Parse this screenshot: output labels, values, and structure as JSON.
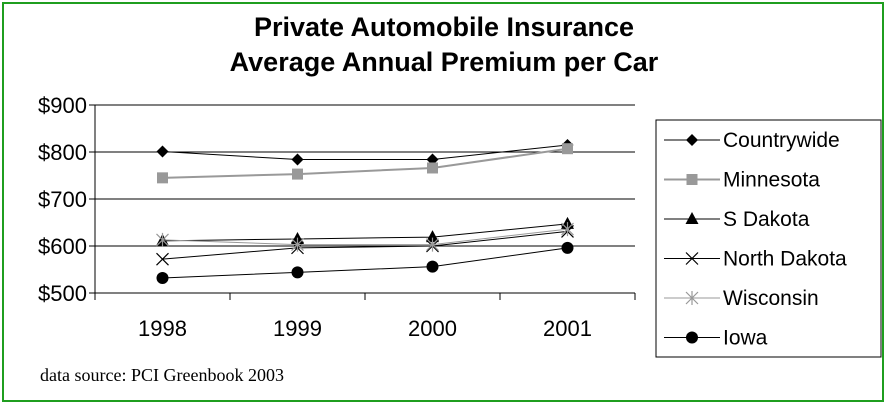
{
  "chart_data": {
    "type": "line",
    "title_line1": "Private Automobile Insurance",
    "title_line2": "Average Annual Premium per Car",
    "categories": [
      "1998",
      "1999",
      "2000",
      "2001"
    ],
    "ylim": [
      500,
      900
    ],
    "yticks": [
      500,
      600,
      700,
      800,
      900
    ],
    "ytick_labels": [
      "$500",
      "$600",
      "$700",
      "$800",
      "$900"
    ],
    "grid": true,
    "legend_position": "right",
    "series": [
      {
        "name": "Countrywide",
        "values": [
          801,
          784,
          784,
          815
        ],
        "color": "#000000",
        "marker": "diamond"
      },
      {
        "name": "Minnesota",
        "values": [
          745,
          753,
          766,
          807
        ],
        "color": "#999999",
        "marker": "square"
      },
      {
        "name": "S Dakota",
        "values": [
          611,
          615,
          619,
          647
        ],
        "color": "#000000",
        "marker": "triangle"
      },
      {
        "name": "North Dakota",
        "values": [
          572,
          596,
          600,
          631
        ],
        "color": "#000000",
        "marker": "x"
      },
      {
        "name": "Wisconsin",
        "values": [
          613,
          603,
          603,
          636
        ],
        "color": "#999999",
        "marker": "asterisk"
      },
      {
        "name": "Iowa",
        "values": [
          532,
          544,
          556,
          596
        ],
        "color": "#000000",
        "marker": "circle"
      }
    ]
  },
  "footer": {
    "source": "data source:  PCI Greenbook 2003"
  }
}
